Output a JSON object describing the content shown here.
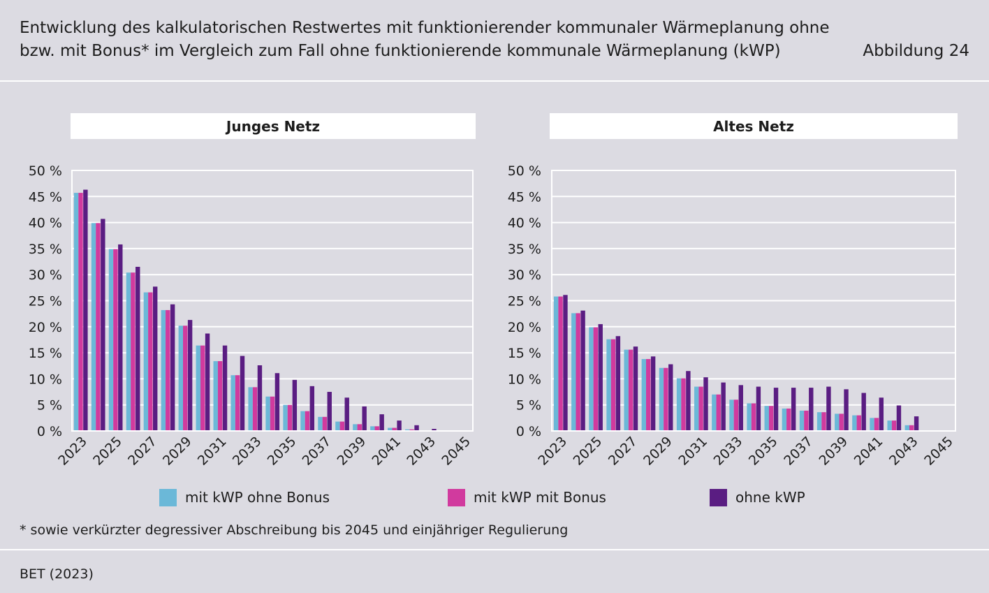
{
  "header": {
    "title_line1": "Entwicklung des kalkulatorischen Restwertes mit funktionierender kommunaler Wärmeplanung ohne",
    "title_line2": "bzw. mit Bonus* im Vergleich zum Fall ohne funktionierende kommunale Wärmeplanung (kWP)",
    "figure_label": "Abbildung 24"
  },
  "footnote": "* sowie verkürzter degressiver Abschreibung bis 2045 und einjähriger Regulierung",
  "source": "BET (2023)",
  "colors": {
    "mit_kwp_ohne_bonus": "#6bb8d8",
    "mit_kwp_mit_bonus": "#d13a9e",
    "ohne_kwp": "#5a1d82"
  },
  "legend": [
    {
      "label": "mit kWP ohne Bonus",
      "color": "#6bb8d8"
    },
    {
      "label": "mit kWP mit Bonus",
      "color": "#d13a9e"
    },
    {
      "label": "ohne kWP",
      "color": "#5a1d82"
    }
  ],
  "chart_data": [
    {
      "type": "bar",
      "title": "Junges Netz",
      "categories": [
        2023,
        2024,
        2025,
        2026,
        2027,
        2028,
        2029,
        2030,
        2031,
        2032,
        2033,
        2034,
        2035,
        2036,
        2037,
        2038,
        2039,
        2040,
        2041,
        2042,
        2043,
        2044,
        2045
      ],
      "x_tick_labels": [
        "2023",
        "2025",
        "2027",
        "2029",
        "2031",
        "2033",
        "2035",
        "2037",
        "2039",
        "2041",
        "2043",
        "2045"
      ],
      "ylim": [
        0,
        50
      ],
      "y_ticks": [
        "0 %",
        "5 %",
        "10 %",
        "15 %",
        "20 %",
        "25 %",
        "30 %",
        "35 %",
        "40 %",
        "45 %",
        "50 %"
      ],
      "grid": true,
      "series": [
        {
          "name": "mit kWP ohne Bonus",
          "values": [
            45.7,
            39.9,
            34.9,
            30.4,
            26.6,
            23.2,
            20.2,
            16.4,
            13.4,
            10.7,
            8.4,
            6.6,
            5.0,
            3.8,
            2.7,
            1.8,
            1.3,
            0.9,
            0.6,
            0.3,
            0.1,
            0,
            0
          ]
        },
        {
          "name": "mit kWP mit Bonus",
          "values": [
            45.7,
            39.9,
            34.9,
            30.4,
            26.6,
            23.2,
            20.2,
            16.4,
            13.4,
            10.7,
            8.4,
            6.6,
            5.0,
            3.8,
            2.7,
            1.8,
            1.3,
            0.9,
            0.6,
            0.3,
            0.1,
            0,
            0
          ]
        },
        {
          "name": "ohne kWP",
          "values": [
            46.3,
            40.7,
            35.8,
            31.5,
            27.7,
            24.3,
            21.3,
            18.7,
            16.4,
            14.4,
            12.6,
            11.1,
            9.8,
            8.6,
            7.5,
            6.4,
            4.7,
            3.2,
            2.0,
            1.1,
            0.4,
            0,
            0
          ]
        }
      ]
    },
    {
      "type": "bar",
      "title": "Altes Netz",
      "categories": [
        2023,
        2024,
        2025,
        2026,
        2027,
        2028,
        2029,
        2030,
        2031,
        2032,
        2033,
        2034,
        2035,
        2036,
        2037,
        2038,
        2039,
        2040,
        2041,
        2042,
        2043,
        2044,
        2045
      ],
      "x_tick_labels": [
        "2023",
        "2025",
        "2027",
        "2029",
        "2031",
        "2033",
        "2035",
        "2037",
        "2039",
        "2041",
        "2043",
        "2045"
      ],
      "ylim": [
        0,
        50
      ],
      "y_ticks": [
        "0 %",
        "5 %",
        "10 %",
        "15 %",
        "20 %",
        "25 %",
        "30 %",
        "35 %",
        "40 %",
        "45 %",
        "50 %"
      ],
      "grid": true,
      "series": [
        {
          "name": "mit kWP ohne Bonus",
          "values": [
            25.8,
            22.6,
            19.9,
            17.6,
            15.6,
            13.8,
            12.1,
            10.1,
            8.5,
            7.0,
            6.0,
            5.3,
            4.8,
            4.3,
            3.9,
            3.6,
            3.3,
            3.0,
            2.5,
            2.0,
            1.1,
            0.1,
            0
          ]
        },
        {
          "name": "mit kWP mit Bonus",
          "values": [
            25.8,
            22.6,
            19.9,
            17.6,
            15.6,
            13.8,
            12.1,
            10.1,
            8.5,
            7.0,
            6.0,
            5.3,
            4.8,
            4.3,
            3.9,
            3.6,
            3.3,
            3.0,
            2.5,
            2.0,
            1.1,
            0.1,
            0
          ]
        },
        {
          "name": "ohne kWP",
          "values": [
            26.1,
            23.1,
            20.5,
            18.2,
            16.2,
            14.3,
            12.8,
            11.5,
            10.3,
            9.3,
            8.8,
            8.5,
            8.3,
            8.3,
            8.3,
            8.5,
            8.0,
            7.3,
            6.4,
            4.9,
            2.8,
            0.1,
            0
          ]
        }
      ]
    }
  ]
}
